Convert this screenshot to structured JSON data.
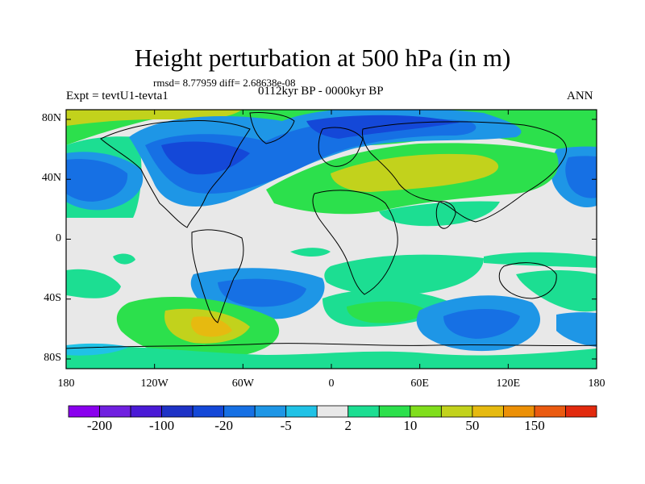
{
  "title": "Height perturbation at 500 hPa (in m)",
  "stats": "rmsd= 8.77959 diff= 2.68638e-08",
  "period": "0112kyr BP - 0000kyr BP",
  "experiment": "Expt = tevtU1-tevta1",
  "season": "ANN",
  "lat_labels": [
    "80N",
    "40N",
    "0",
    "40S",
    "80S"
  ],
  "lon_labels": [
    "180",
    "120W",
    "60W",
    "0",
    "60E",
    "120E",
    "180"
  ],
  "colorbar": {
    "colors": [
      "#8a00ee",
      "#7020e0",
      "#4a1ad6",
      "#1e32c6",
      "#1448d8",
      "#1670e4",
      "#1e96e6",
      "#20c2e6",
      "#e8e8e8",
      "#1cde92",
      "#2ce04c",
      "#80de1c",
      "#c2d21c",
      "#e6ba10",
      "#ec9006",
      "#ea5a10",
      "#e22a0e"
    ],
    "labels": [
      "-200",
      "-100",
      "-20",
      "-5",
      "2",
      "10",
      "50",
      "150"
    ]
  },
  "map": {
    "colors": {
      "background": "#e8e8e8",
      "light_blue": "#1e96e6",
      "blue": "#1670e4",
      "dark_blue": "#1448d8",
      "teal": "#1cde92",
      "green": "#2ce04c",
      "yellow_green": "#c2d21c",
      "gold": "#e6ba10",
      "cyan": "#20c2e6",
      "coast": "#000000"
    }
  }
}
